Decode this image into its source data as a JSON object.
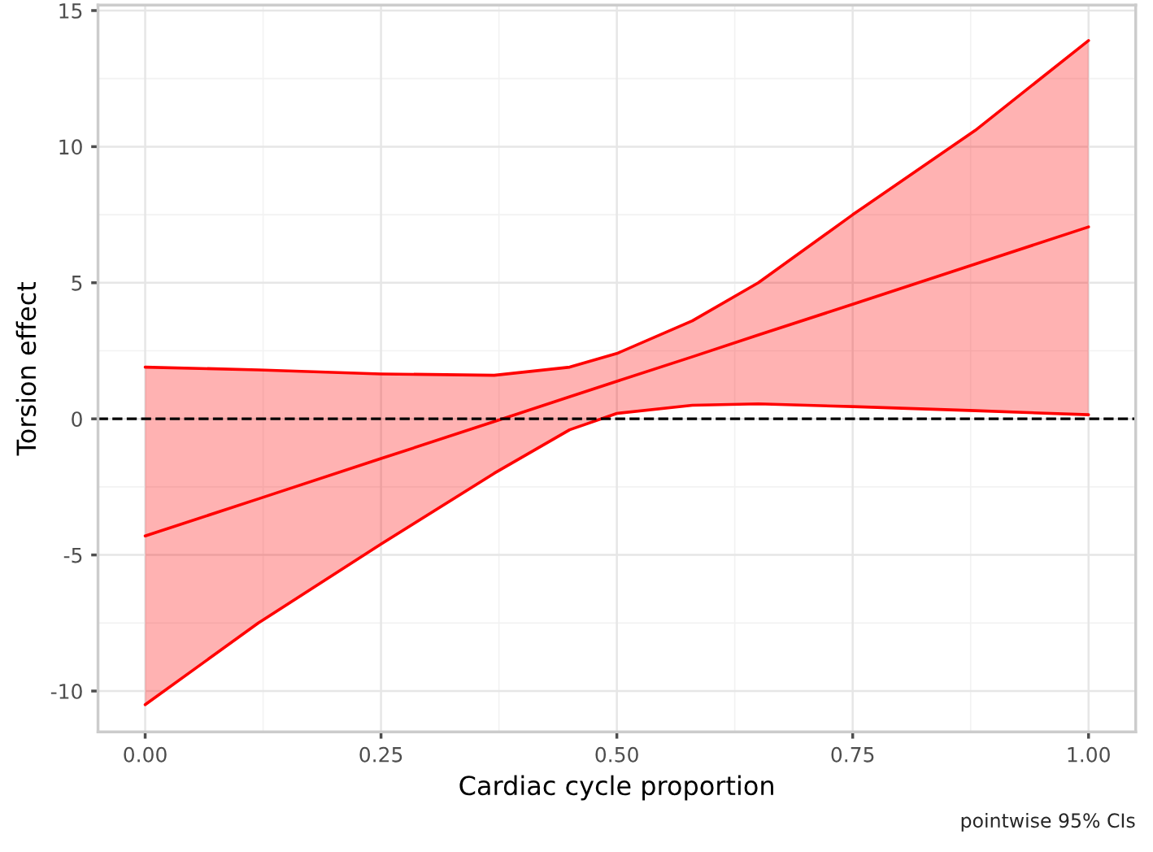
{
  "chart_data": {
    "type": "line",
    "xlabel": "Cardiac cycle proportion",
    "ylabel": "Torsion effect",
    "xlim": [
      -0.05,
      1.05
    ],
    "ylim": [
      -11.5,
      15.2
    ],
    "xticks": [
      {
        "value": 0,
        "label": "0.00"
      },
      {
        "value": 0.25,
        "label": "0.25"
      },
      {
        "value": 0.5,
        "label": "0.50"
      },
      {
        "value": 0.75,
        "label": "0.75"
      },
      {
        "value": 1,
        "label": "1.00"
      }
    ],
    "yticks": [
      -10,
      -5,
      0,
      5,
      10,
      15
    ],
    "grid": true,
    "line_style": "solid",
    "marker": "none",
    "series": [
      {
        "color": "#ff0000",
        "x": [
          0,
          0.12,
          0.25,
          0.37,
          0.45,
          0.5,
          0.58,
          0.65,
          0.75,
          0.88,
          1.0
        ],
        "values": [
          -4.3,
          -2.94,
          -1.46,
          -0.1,
          0.81,
          1.38,
          2.28,
          3.08,
          4.21,
          5.69,
          7.05
        ],
        "lower": [
          -10.5,
          -7.5,
          -4.6,
          -2.0,
          -0.4,
          0.2,
          0.5,
          0.55,
          0.45,
          0.3,
          0.15
        ],
        "upper": [
          1.9,
          1.8,
          1.65,
          1.6,
          1.9,
          2.4,
          3.6,
          5.0,
          7.5,
          10.6,
          13.9
        ]
      },
      {
        "color": "#ff0000",
        "x": [
          0,
          0.12,
          0.25,
          0.37,
          0.45,
          0.5,
          0.58,
          0.65,
          0.75,
          0.88,
          1.0
        ],
        "values": [
          -10.5,
          -7.5,
          -4.6,
          -2.0,
          -0.4,
          0.2,
          0.5,
          0.55,
          0.45,
          0.3,
          0.15
        ]
      },
      {
        "color": "#ff0000",
        "x": [
          0,
          0.12,
          0.25,
          0.37,
          0.45,
          0.5,
          0.58,
          0.65,
          0.75,
          0.88,
          1.0
        ],
        "values": [
          1.9,
          1.8,
          1.65,
          1.6,
          1.9,
          2.4,
          3.6,
          5.0,
          7.5,
          10.6,
          13.9
        ]
      }
    ],
    "ref_lines": [
      {
        "axis": "y",
        "value": 0,
        "color": "#000000",
        "line_style": "dashed"
      }
    ],
    "annotations": [
      "pointwise 95% CIs"
    ]
  }
}
